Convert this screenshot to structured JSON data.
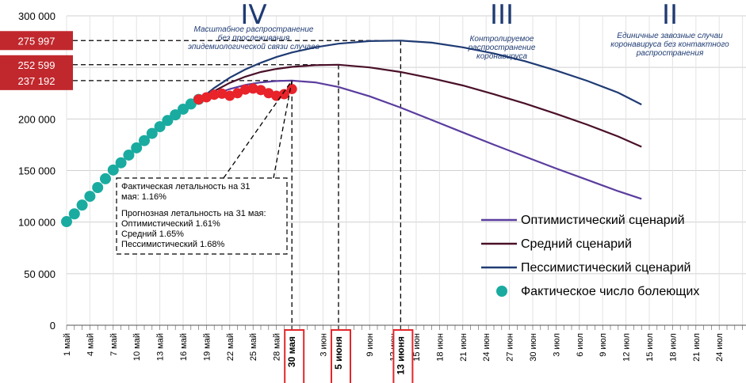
{
  "chart_data": {
    "type": "line",
    "ylim": [
      0,
      300000
    ],
    "yticks": [
      0,
      50000,
      100000,
      150000,
      200000,
      250000,
      300000
    ],
    "ytick_labels": [
      "0",
      "50 000",
      "100 000",
      "150 000",
      "200 000",
      "250 000",
      "300 000"
    ],
    "x_tick_labels": [
      "1 май",
      "4 май",
      "7 май",
      "10 май",
      "13 май",
      "16 май",
      "19 май",
      "22 май",
      "25 май",
      "28 май",
      "30 мая",
      "3 июн",
      "5 июня",
      "9 июн",
      "12 июн",
      "13 июня",
      "15 июн",
      "18 июн",
      "21 июн",
      "24 июн",
      "27 июн",
      "30 июн",
      "3 июл",
      "6 июл",
      "9 июл",
      "12 июл",
      "15 июл",
      "18 июл",
      "21 июл",
      "24 июл"
    ],
    "highlighted_ticks": [
      {
        "label": "30 мая",
        "day": 30
      },
      {
        "label": "5 июня",
        "day": 36
      },
      {
        "label": "13 июня",
        "day": 44
      }
    ],
    "callouts": [
      {
        "label": "275 997",
        "value": 275997,
        "peak_day": 44
      },
      {
        "label": "252 599",
        "value": 252599,
        "peak_day": 36
      },
      {
        "label": "237 192",
        "value": 237192,
        "peak_day": 30
      }
    ],
    "phases": [
      {
        "numeral": "IV",
        "lines": [
          "Масштабное распространение",
          "без прослеживания",
          "эпидемиологической связи случаев"
        ]
      },
      {
        "numeral": "III",
        "lines": [
          "Контролируемое",
          "распространение",
          "коронавируса"
        ]
      },
      {
        "numeral": "II",
        "lines": [
          "Единичные завозные случаи",
          "коронавируса без контактного",
          "распространения"
        ]
      }
    ],
    "annotation": {
      "line1": "Фактическая летальность на 31",
      "line2": "мая: 1.16%",
      "line3": "Прогнозная летальность на 31 мая:",
      "line4": "Оптимистический 1.61%",
      "line5": "Средний 1.65%",
      "line6": "Пессимистический 1.68%"
    },
    "series": [
      {
        "name": "Оптимистический сценарий",
        "color": "#5a3d9e",
        "points": [
          [
            18,
            218000
          ],
          [
            20,
            224000
          ],
          [
            22,
            229000
          ],
          [
            24,
            233000
          ],
          [
            26,
            235500
          ],
          [
            28,
            236800
          ],
          [
            30,
            237192
          ],
          [
            33,
            235500
          ],
          [
            36,
            231000
          ],
          [
            40,
            222000
          ],
          [
            44,
            211000
          ],
          [
            48,
            199000
          ],
          [
            52,
            187000
          ],
          [
            56,
            175000
          ],
          [
            60,
            163500
          ],
          [
            64,
            152000
          ],
          [
            68,
            141000
          ],
          [
            72,
            130000
          ],
          [
            75,
            122500
          ]
        ]
      },
      {
        "name": "Средний сценарий",
        "color": "#4a1028",
        "points": [
          [
            18,
            218000
          ],
          [
            20,
            227000
          ],
          [
            22,
            235000
          ],
          [
            24,
            241000
          ],
          [
            26,
            245500
          ],
          [
            28,
            248500
          ],
          [
            30,
            250500
          ],
          [
            33,
            252100
          ],
          [
            36,
            252599
          ],
          [
            40,
            250000
          ],
          [
            44,
            245500
          ],
          [
            48,
            239500
          ],
          [
            52,
            232500
          ],
          [
            56,
            224000
          ],
          [
            60,
            215000
          ],
          [
            64,
            205000
          ],
          [
            68,
            194500
          ],
          [
            72,
            183000
          ],
          [
            75,
            173000
          ]
        ]
      },
      {
        "name": "Пессимистический сценарий",
        "color": "#1f3b73",
        "points": [
          [
            18,
            218000
          ],
          [
            20,
            230000
          ],
          [
            22,
            240000
          ],
          [
            24,
            248000
          ],
          [
            26,
            254500
          ],
          [
            28,
            260000
          ],
          [
            30,
            264500
          ],
          [
            33,
            269500
          ],
          [
            36,
            273000
          ],
          [
            40,
            275500
          ],
          [
            44,
            275997
          ],
          [
            48,
            274000
          ],
          [
            52,
            269500
          ],
          [
            56,
            263500
          ],
          [
            60,
            256000
          ],
          [
            64,
            247000
          ],
          [
            68,
            237000
          ],
          [
            72,
            225500
          ],
          [
            75,
            214000
          ]
        ]
      },
      {
        "name": "Фактическое число болеющих",
        "color": "#1aaba0",
        "type": "scatter",
        "points": [
          [
            1,
            100500
          ],
          [
            2,
            108000
          ],
          [
            3,
            116500
          ],
          [
            4,
            125000
          ],
          [
            5,
            133500
          ],
          [
            6,
            142000
          ],
          [
            7,
            150500
          ],
          [
            8,
            157500
          ],
          [
            9,
            165000
          ],
          [
            10,
            172000
          ],
          [
            11,
            179000
          ],
          [
            12,
            186000
          ],
          [
            13,
            192500
          ],
          [
            14,
            198500
          ],
          [
            15,
            204000
          ],
          [
            16,
            209500
          ],
          [
            17,
            214500
          ],
          [
            18,
            219000
          ]
        ]
      },
      {
        "name": "Фактическое (красные)",
        "color": "#e8232a",
        "type": "scatter",
        "legend": false,
        "points": [
          [
            18,
            219000
          ],
          [
            19,
            221000
          ],
          [
            20,
            223500
          ],
          [
            21,
            224500
          ],
          [
            22,
            222500
          ],
          [
            23,
            225000
          ],
          [
            24,
            228500
          ],
          [
            25,
            229500
          ],
          [
            26,
            228000
          ],
          [
            27,
            225000
          ],
          [
            28,
            222500
          ],
          [
            29,
            224000
          ],
          [
            30,
            229000
          ]
        ]
      }
    ]
  }
}
